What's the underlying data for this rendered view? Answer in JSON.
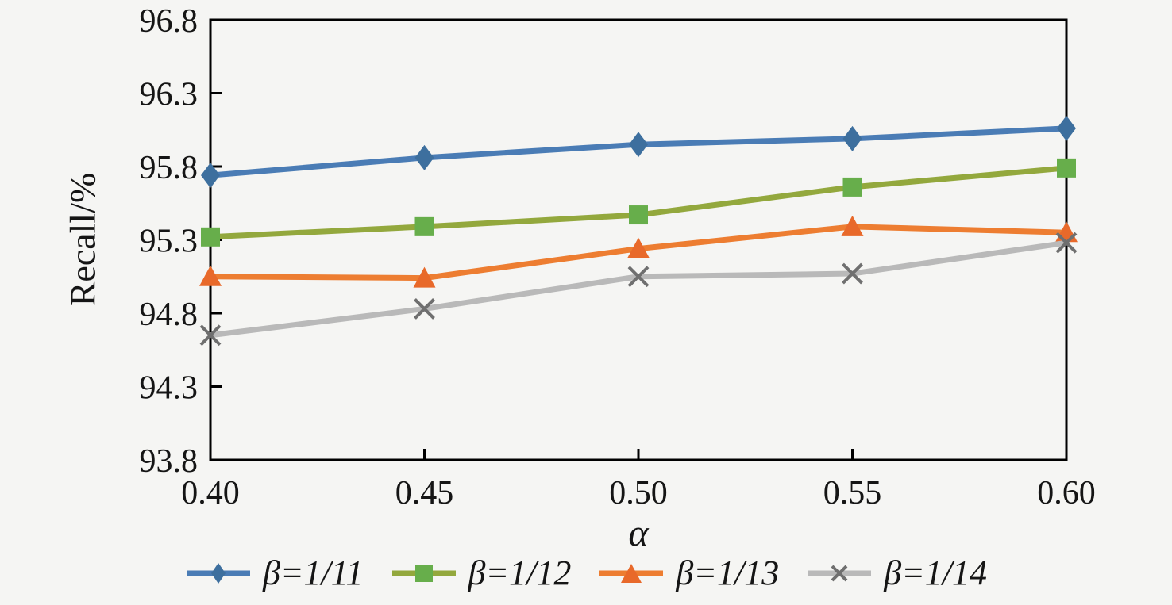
{
  "chart_data": {
    "type": "line",
    "title": "",
    "xlabel": "α",
    "ylabel": "Recall/%",
    "x": [
      0.4,
      0.45,
      0.5,
      0.55,
      0.6
    ],
    "x_tick_labels": [
      "0.40",
      "0.45",
      "0.50",
      "0.55",
      "0.60"
    ],
    "y_ticks": [
      93.8,
      94.3,
      94.8,
      95.3,
      95.8,
      96.3,
      96.8
    ],
    "y_tick_labels": [
      "93.8",
      "94.3",
      "94.8",
      "95.3",
      "95.8",
      "96.3",
      "96.8"
    ],
    "xlim": [
      0.4,
      0.6
    ],
    "ylim": [
      93.8,
      96.8
    ],
    "grid": false,
    "legend_position": "bottom",
    "series": [
      {
        "name": "β=1/11",
        "marker": "diamond",
        "color": "#4a7cb5",
        "marker_color": "#3d6f9e",
        "values": [
          95.74,
          95.86,
          95.95,
          95.99,
          96.06
        ]
      },
      {
        "name": "β=1/12",
        "marker": "square",
        "color": "#93a83d",
        "marker_color": "#67ae4b",
        "values": [
          95.32,
          95.39,
          95.47,
          95.66,
          95.79
        ]
      },
      {
        "name": "β=1/13",
        "marker": "triangle",
        "color": "#ed7d31",
        "marker_color": "#e8692a",
        "values": [
          95.05,
          95.04,
          95.24,
          95.39,
          95.35
        ]
      },
      {
        "name": "β=1/14",
        "marker": "x",
        "color": "#b9b9b9",
        "marker_color": "#6f6f6f",
        "values": [
          94.65,
          94.83,
          95.05,
          95.07,
          95.28
        ]
      }
    ],
    "colors": {
      "background": "#f5f5f3",
      "axis": "#000000"
    }
  }
}
